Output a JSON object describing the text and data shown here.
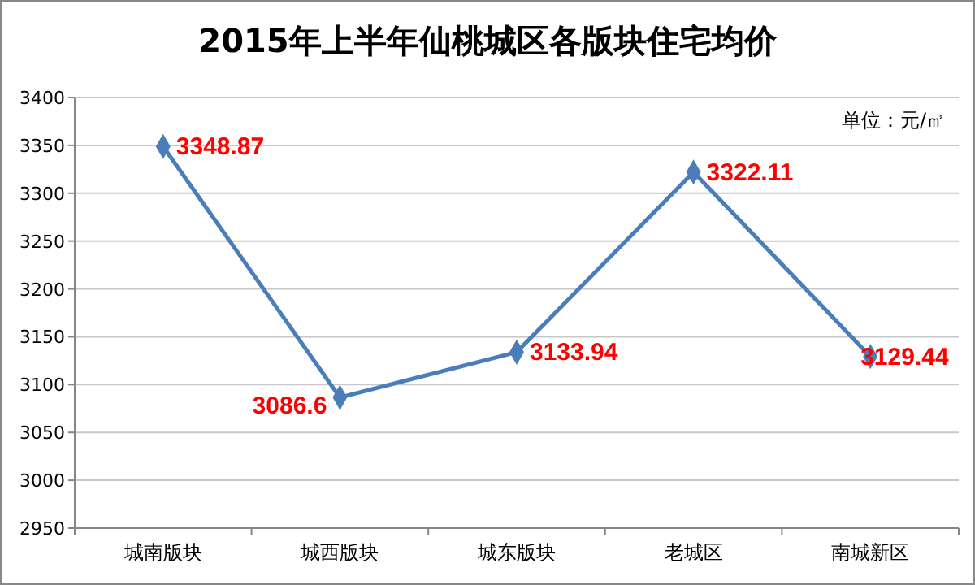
{
  "chart_data": {
    "type": "line",
    "title": "2015年上半年仙桃城区各版块住宅均价",
    "annotations": [
      "单位：元/㎡"
    ],
    "categories": [
      "城南版块",
      "城西版块",
      "城东版块",
      "老城区",
      "南城新区"
    ],
    "series": [
      {
        "color": "#4a7ebb",
        "values": [
          3348.87,
          3086.6,
          3133.94,
          3322.11,
          3129.44
        ]
      }
    ],
    "ylim": [
      2950,
      3400
    ],
    "yticks": [
      2950,
      3000,
      3050,
      3100,
      3150,
      3200,
      3250,
      3300,
      3350,
      3400
    ],
    "grid": "y",
    "marker": "diamond",
    "line_style": "solid",
    "data_labels": true
  }
}
